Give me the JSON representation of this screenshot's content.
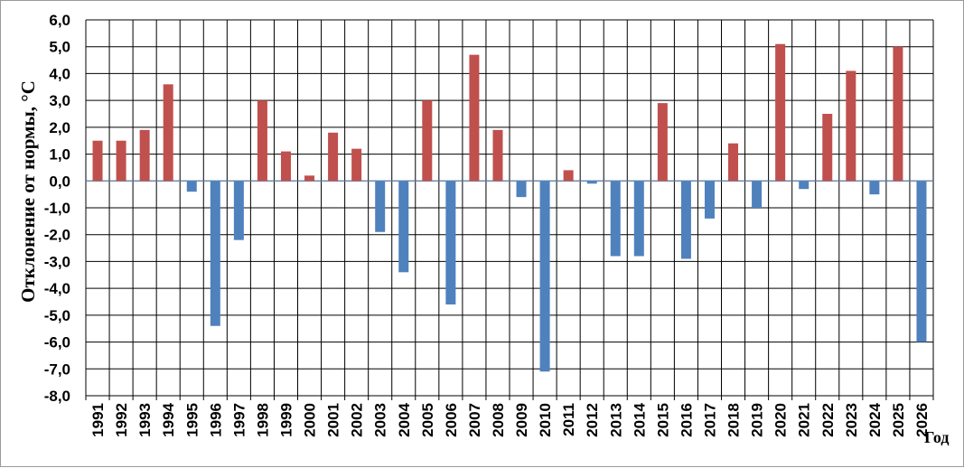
{
  "chart_data": {
    "type": "bar",
    "title": "",
    "ylabel": "Отклонение от нормы, °С",
    "xlabel": "Год",
    "ylim": [
      -8,
      6
    ],
    "ytick_step": 1,
    "ytick_labels": [
      "6,0",
      "5,0",
      "4,0",
      "3,0",
      "2,0",
      "1,0",
      "0,0",
      "-1,0",
      "-2,0",
      "-3,0",
      "-4,0",
      "-5,0",
      "-6,0",
      "-7,0",
      "-8,0"
    ],
    "grid": true,
    "positive_color": "#c0504d",
    "negative_color": "#4f81bd",
    "categories": [
      "1991",
      "1992",
      "1993",
      "1994",
      "1995",
      "1996",
      "1997",
      "1998",
      "1999",
      "2000",
      "2001",
      "2002",
      "2003",
      "2004",
      "2005",
      "2006",
      "2007",
      "2008",
      "2009",
      "2010",
      "2011",
      "2012",
      "2013",
      "2014",
      "2015",
      "2016",
      "2017",
      "2018",
      "2019",
      "2020",
      "2021",
      "2022",
      "2023",
      "2024",
      "2025",
      "2026"
    ],
    "values": [
      1.5,
      1.5,
      1.9,
      3.6,
      -0.4,
      -5.4,
      -2.2,
      3.0,
      1.1,
      0.2,
      1.8,
      1.2,
      -1.9,
      -3.4,
      3.0,
      -4.6,
      4.7,
      1.9,
      -0.6,
      -7.1,
      0.4,
      -0.1,
      -2.8,
      -2.8,
      2.9,
      -2.9,
      -1.4,
      1.4,
      -1.0,
      5.1,
      -0.3,
      2.5,
      4.1,
      -0.5,
      5.0,
      -6.0
    ]
  }
}
